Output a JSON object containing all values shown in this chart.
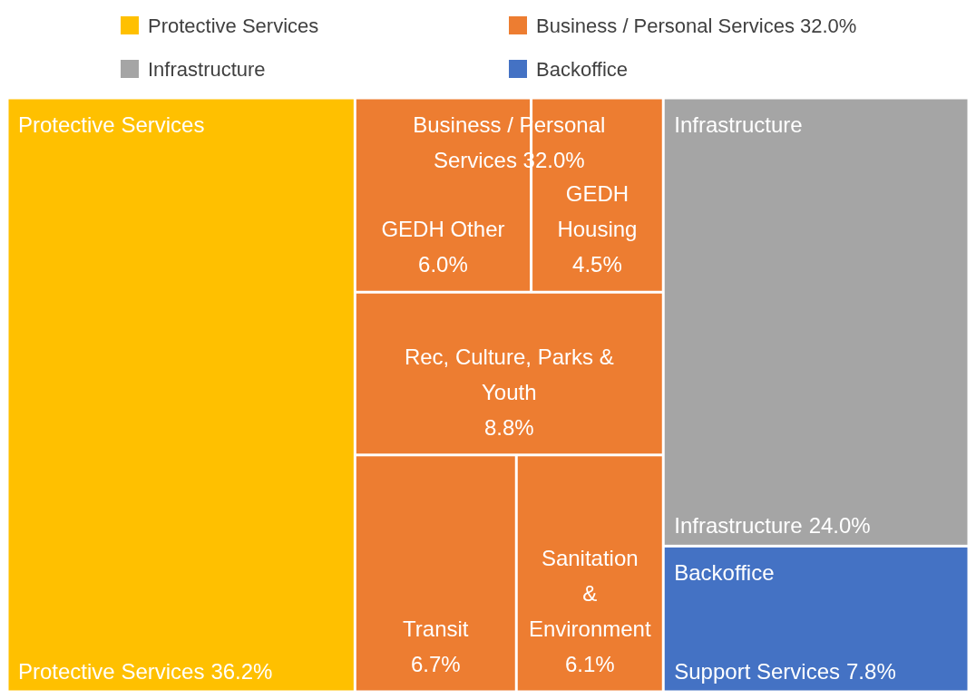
{
  "chart_data": {
    "type": "other",
    "legend": "top",
    "categories": [
      "Protective Services",
      "GEDH Other",
      "GEDH Housing",
      "Rec, Culture, Parks & Youth",
      "Transit",
      "Sanitation & Environment",
      "Infrastructure",
      "Support Services"
    ],
    "series": [
      {
        "name": "Protective Services",
        "color": "#ffc000",
        "values": [
          36.2,
          null,
          null,
          null,
          null,
          null,
          null,
          null
        ],
        "value_labels": [
          "36.2%",
          null,
          null,
          null,
          null,
          null,
          null,
          null
        ]
      },
      {
        "name": "Business / Personal Services 32.0%",
        "color": "#ed7d31",
        "values": [
          null,
          6.0,
          4.5,
          8.8,
          6.7,
          6.1,
          null,
          null
        ],
        "value_labels": [
          null,
          "6.0%",
          "4.5%",
          "8.8%",
          "6.7%",
          "6.1%",
          null,
          null
        ]
      },
      {
        "name": "Infrastructure",
        "color": "#a5a5a5",
        "values": [
          null,
          null,
          null,
          null,
          null,
          null,
          24.0,
          null
        ],
        "value_labels": [
          null,
          null,
          null,
          null,
          null,
          null,
          "24.0%",
          null
        ]
      },
      {
        "name": "Backoffice",
        "color": "#4472c4",
        "values": [
          null,
          null,
          null,
          null,
          null,
          null,
          null,
          7.8
        ],
        "value_labels": [
          null,
          null,
          null,
          null,
          null,
          null,
          null,
          "7.8%"
        ]
      }
    ]
  }
}
